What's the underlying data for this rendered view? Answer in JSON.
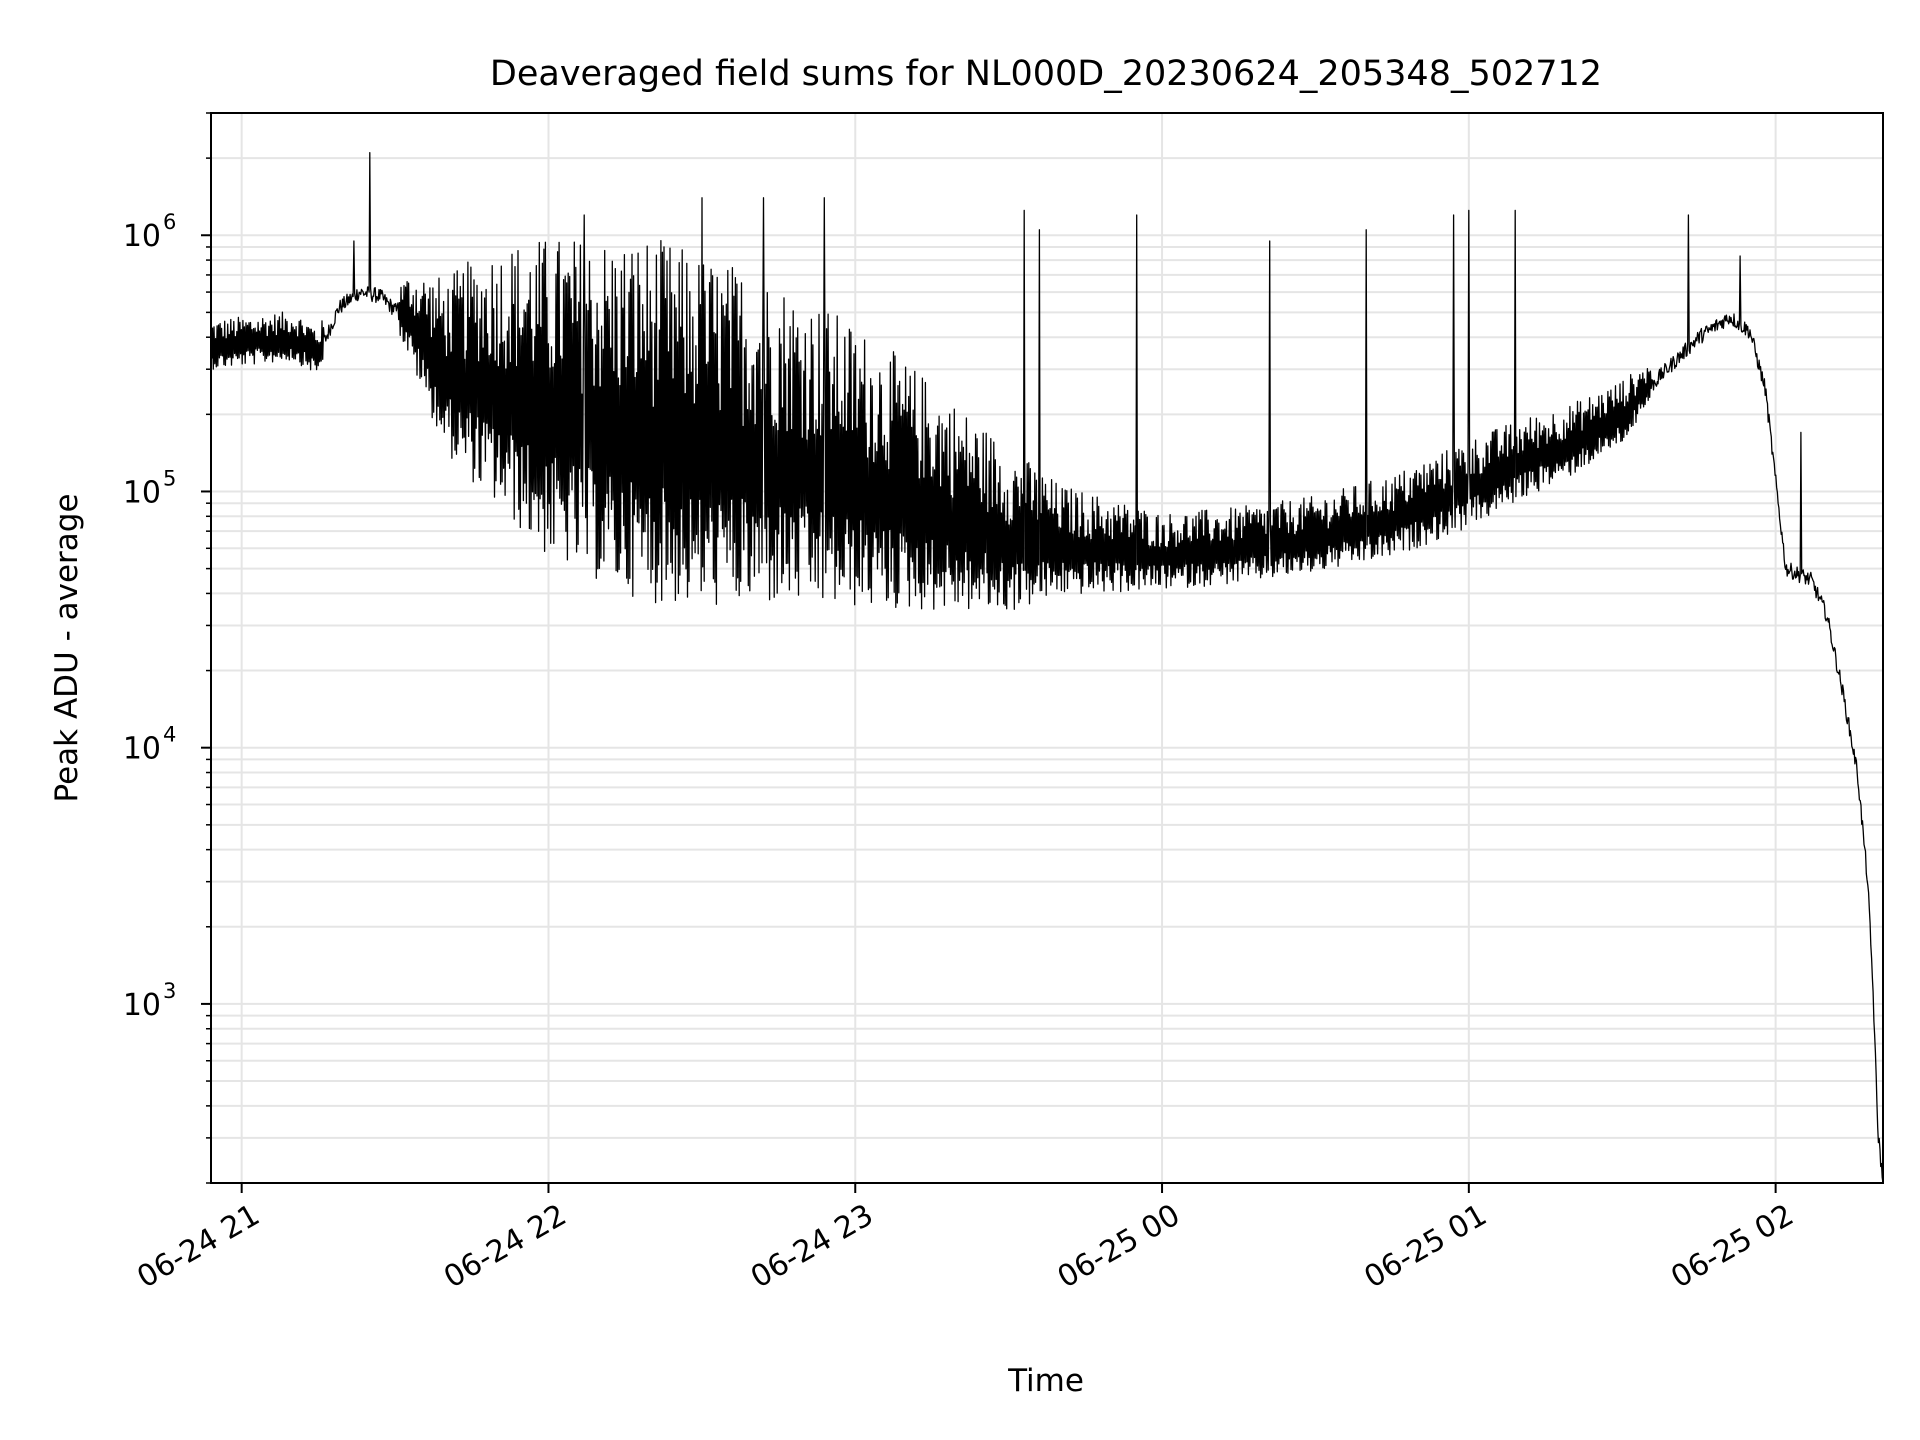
{
  "chart_data": {
    "type": "line",
    "title": "Deaveraged field sums for NL000D_20230624_205348_502712",
    "xlabel": "Time",
    "ylabel": "Peak ADU - average",
    "yscale": "log",
    "xlim": [
      "2023-06-24 20:54",
      "2023-06-25 02:21"
    ],
    "ylim": [
      200,
      3000000
    ],
    "grid": true,
    "x_ticks": [
      {
        "t": "2023-06-24 21:00",
        "label": "06-24 21"
      },
      {
        "t": "2023-06-24 22:00",
        "label": "06-24 22"
      },
      {
        "t": "2023-06-24 23:00",
        "label": "06-24 23"
      },
      {
        "t": "2023-06-25 00:00",
        "label": "06-25 00"
      },
      {
        "t": "2023-06-25 01:00",
        "label": "06-25 01"
      },
      {
        "t": "2023-06-25 02:00",
        "label": "06-25 02"
      }
    ],
    "y_ticks": [
      {
        "value": 1000,
        "base": "10",
        "exp": "3"
      },
      {
        "value": 10000,
        "base": "10",
        "exp": "4"
      },
      {
        "value": 100000,
        "base": "10",
        "exp": "5"
      },
      {
        "value": 1000000,
        "base": "10",
        "exp": "6"
      }
    ],
    "series": [
      {
        "color": "#000000",
        "baseline": [
          [
            "2023-06-24 20:54",
            360000
          ],
          [
            "2023-06-24 21:10",
            390000
          ],
          [
            "2023-06-24 21:15",
            340000
          ],
          [
            "2023-06-24 21:19",
            520000
          ],
          [
            "2023-06-24 21:23",
            600000
          ],
          [
            "2023-06-24 21:27",
            580000
          ],
          [
            "2023-06-24 21:33",
            450000
          ],
          [
            "2023-06-24 21:40",
            270000
          ],
          [
            "2023-06-24 21:50",
            230000
          ],
          [
            "2023-06-24 22:00",
            180000
          ],
          [
            "2023-06-24 22:15",
            150000
          ],
          [
            "2023-06-24 22:30",
            130000
          ],
          [
            "2023-06-24 22:45",
            120000
          ],
          [
            "2023-06-24 23:00",
            100000
          ],
          [
            "2023-06-24 23:15",
            80000
          ],
          [
            "2023-06-24 23:30",
            62000
          ],
          [
            "2023-06-24 23:45",
            58000
          ],
          [
            "2023-06-25 00:00",
            55000
          ],
          [
            "2023-06-25 00:15",
            58000
          ],
          [
            "2023-06-25 00:30",
            64000
          ],
          [
            "2023-06-25 00:45",
            75000
          ],
          [
            "2023-06-25 01:00",
            100000
          ],
          [
            "2023-06-25 01:10",
            125000
          ],
          [
            "2023-06-25 01:20",
            150000
          ],
          [
            "2023-06-25 01:30",
            195000
          ],
          [
            "2023-06-25 01:38",
            290000
          ],
          [
            "2023-06-25 01:45",
            400000
          ],
          [
            "2023-06-25 01:51",
            480000
          ],
          [
            "2023-06-25 01:55",
            420000
          ],
          [
            "2023-06-25 01:58",
            250000
          ],
          [
            "2023-06-25 02:00",
            110000
          ],
          [
            "2023-06-25 02:02",
            50000
          ],
          [
            "2023-06-25 02:07",
            45000
          ],
          [
            "2023-06-25 02:10",
            33000
          ],
          [
            "2023-06-25 02:13",
            17000
          ],
          [
            "2023-06-25 02:16",
            8000
          ],
          [
            "2023-06-25 02:18",
            3000
          ],
          [
            "2023-06-25 02:19",
            1200
          ],
          [
            "2023-06-25 02:20",
            320
          ],
          [
            "2023-06-25 02:21",
            200
          ]
        ],
        "oscillation_amplitude": [
          [
            "2023-06-24 20:54",
            1.3
          ],
          [
            "2023-06-24 21:15",
            1.3
          ],
          [
            "2023-06-24 21:20",
            1.1
          ],
          [
            "2023-06-24 21:30",
            1.2
          ],
          [
            "2023-06-24 21:40",
            2.5
          ],
          [
            "2023-06-24 21:50",
            4.0
          ],
          [
            "2023-06-24 22:00",
            5.5
          ],
          [
            "2023-06-24 22:20",
            7.0
          ],
          [
            "2023-06-24 22:40",
            6.0
          ],
          [
            "2023-06-24 23:00",
            4.5
          ],
          [
            "2023-06-24 23:20",
            3.0
          ],
          [
            "2023-06-24 23:40",
            1.8
          ],
          [
            "2023-06-25 00:00",
            1.5
          ],
          [
            "2023-06-25 00:30",
            1.5
          ],
          [
            "2023-06-25 01:00",
            1.6
          ],
          [
            "2023-06-25 01:30",
            1.4
          ],
          [
            "2023-06-25 01:40",
            1.15
          ],
          [
            "2023-06-25 01:55",
            1.08
          ],
          [
            "2023-06-25 02:00",
            1.1
          ],
          [
            "2023-06-25 02:21",
            1.1
          ]
        ],
        "spikes": [
          [
            "2023-06-24 21:25",
            2100000
          ],
          [
            "2023-06-24 21:22",
            950000
          ],
          [
            "2023-06-24 22:07",
            1200000
          ],
          [
            "2023-06-24 22:30",
            1400000
          ],
          [
            "2023-06-24 22:42",
            1400000
          ],
          [
            "2023-06-24 22:54",
            1400000
          ],
          [
            "2023-06-24 23:33",
            1250000
          ],
          [
            "2023-06-24 23:36",
            1050000
          ],
          [
            "2023-06-24 23:55",
            1200000
          ],
          [
            "2023-06-25 00:21",
            950000
          ],
          [
            "2023-06-25 00:40",
            1050000
          ],
          [
            "2023-06-25 00:57",
            1200000
          ],
          [
            "2023-06-25 01:00",
            1250000
          ],
          [
            "2023-06-25 01:09",
            1250000
          ],
          [
            "2023-06-25 01:43",
            1200000
          ],
          [
            "2023-06-25 01:53",
            830000
          ],
          [
            "2023-06-25 02:05",
            170000
          ]
        ]
      }
    ]
  }
}
